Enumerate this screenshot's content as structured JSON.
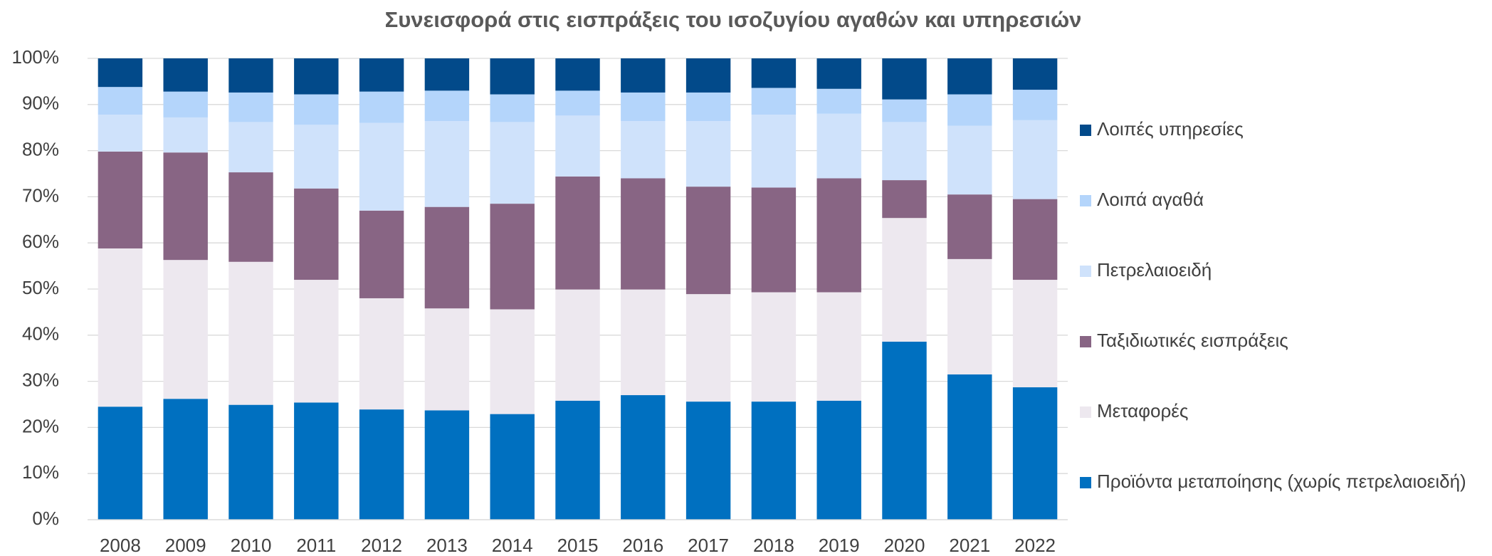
{
  "chart_data": {
    "type": "stacked_bar",
    "title": "Συνεισφορά στις εισπράξεις του ισοζυγίου αγαθών και υπηρεσιών",
    "categories": [
      "2008",
      "2009",
      "2010",
      "2011",
      "2012",
      "2013",
      "2014",
      "2015",
      "2016",
      "2017",
      "2018",
      "2019",
      "2020",
      "2021",
      "2022"
    ],
    "series": [
      {
        "name": "Προϊόντα μεταποίησης (χωρίς πετρελαιοειδή)",
        "color": "#0070c0",
        "values": [
          24.5,
          26.2,
          24.9,
          25.4,
          23.9,
          23.7,
          22.9,
          25.8,
          27.0,
          25.6,
          25.6,
          25.8,
          38.6,
          31.5,
          28.7
        ]
      },
      {
        "name": "Μεταφορές",
        "color": "#ede8ef",
        "values": [
          34.3,
          30.1,
          31.0,
          26.6,
          24.1,
          22.1,
          22.7,
          24.1,
          22.9,
          23.3,
          23.7,
          23.5,
          26.8,
          25.0,
          23.3
        ]
      },
      {
        "name": "Ταξιδιωτικές εισπράξεις",
        "color": "#886584",
        "values": [
          21.0,
          23.3,
          19.4,
          19.8,
          19.0,
          22.0,
          22.9,
          24.5,
          24.1,
          23.3,
          22.7,
          24.7,
          8.2,
          14.0,
          17.5
        ]
      },
      {
        "name": "Πετρελαιοειδή",
        "color": "#cfe2fb",
        "values": [
          8.0,
          7.6,
          10.9,
          13.8,
          19.0,
          18.6,
          17.7,
          13.2,
          12.4,
          14.2,
          15.8,
          14.0,
          12.6,
          14.9,
          17.1
        ]
      },
      {
        "name": "Λοιπά αγαθά",
        "color": "#b4d5fb",
        "values": [
          6.0,
          5.6,
          6.4,
          6.6,
          6.8,
          6.6,
          6.0,
          5.4,
          6.2,
          6.2,
          5.8,
          5.4,
          4.9,
          6.8,
          6.6
        ]
      },
      {
        "name": "Λοιπές υπηρεσίες",
        "color": "#024a8a",
        "values": [
          6.2,
          7.2,
          7.4,
          7.8,
          7.2,
          7.0,
          7.8,
          7.0,
          7.4,
          7.4,
          6.4,
          6.6,
          8.9,
          7.8,
          6.8
        ]
      }
    ],
    "ylim": [
      0,
      100
    ],
    "yticks": [
      {
        "value": 0,
        "label": "0%"
      },
      {
        "value": 10,
        "label": "10%"
      },
      {
        "value": 20,
        "label": "20%"
      },
      {
        "value": 30,
        "label": "30%"
      },
      {
        "value": 40,
        "label": "40%"
      },
      {
        "value": 50,
        "label": "50%"
      },
      {
        "value": 60,
        "label": "60%"
      },
      {
        "value": 70,
        "label": "70%"
      },
      {
        "value": 80,
        "label": "80%"
      },
      {
        "value": 90,
        "label": "90%"
      },
      {
        "value": 100,
        "label": "100%"
      }
    ],
    "grid": true,
    "legend": "right"
  }
}
